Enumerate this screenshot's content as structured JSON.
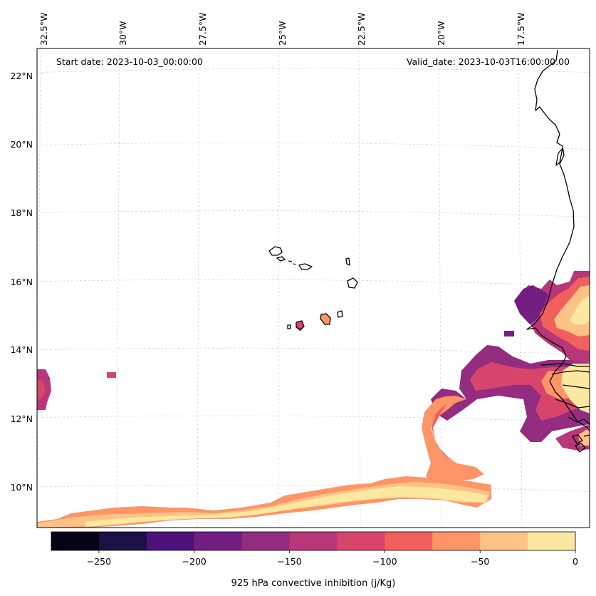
{
  "map": {
    "start_date": "Start date: 2023-10-03_00:00:00",
    "valid_date": "Valid_date: 2023-10-03T16:00:00.00",
    "lon_labels": [
      "32.5°W",
      "30°W",
      "27.5°W",
      "25°W",
      "22.5°W",
      "20°W",
      "17.5°W"
    ],
    "lat_labels": [
      "22°N",
      "20°N",
      "18°N",
      "16°N",
      "14°N",
      "12°N",
      "10°N"
    ]
  },
  "colorbar": {
    "label": "925 hPa convective inhibition (j/Kg)",
    "ticks": [
      "−250",
      "−200",
      "−150",
      "−100",
      "−50",
      "0"
    ],
    "levels": [
      -275,
      -250,
      -225,
      -200,
      -175,
      -150,
      -125,
      -100,
      -75,
      -50,
      -25,
      0
    ],
    "colors": [
      "#050416",
      "#1c1044",
      "#4d127b",
      "#721f81",
      "#942c80",
      "#b73779",
      "#d8456c",
      "#f1605d",
      "#fd9567",
      "#fec287",
      "#fde8a1"
    ]
  }
}
